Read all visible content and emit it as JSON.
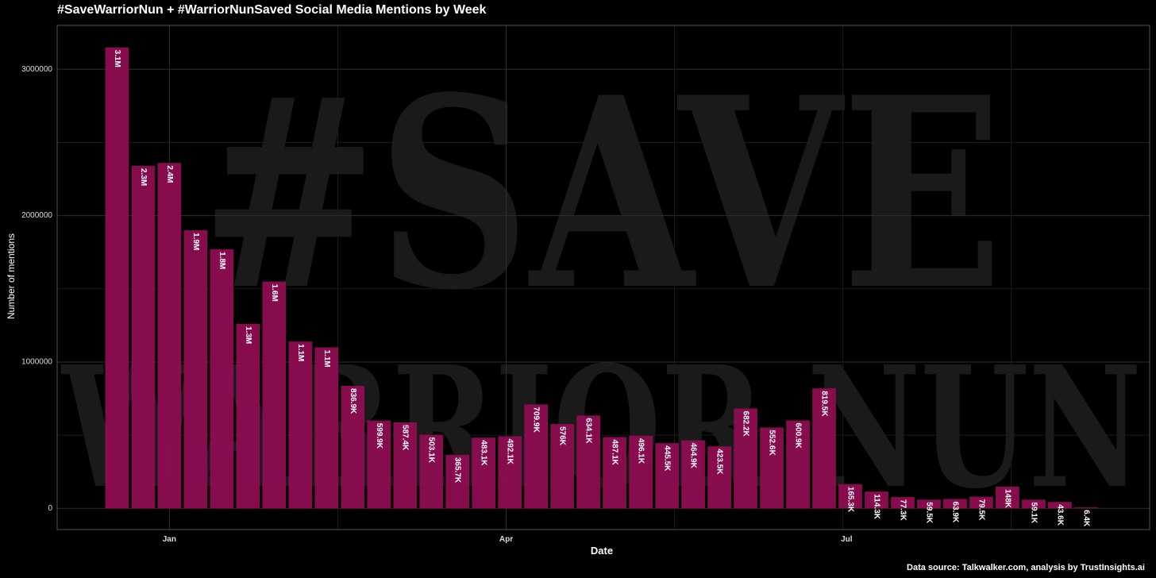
{
  "chart_data": {
    "type": "bar",
    "title": "#SaveWarriorNun + #WarriorNunSaved Social Media Mentions by Week",
    "xlabel": "Date",
    "ylabel": "Number of mentions",
    "caption": "Data source: Talkwalker.com, analysis by TrustInsights.ai",
    "watermark_lines": [
      "#SAVE",
      "WARRIOR NUN"
    ],
    "ylim": [
      -145000,
      3300000
    ],
    "y_ticks": [
      0,
      1000000,
      2000000,
      3000000
    ],
    "y_tick_labels": [
      "0",
      "1000000",
      "2000000",
      "3000000"
    ],
    "x_ticks": [
      {
        "label": "Jan",
        "date": "2023-01-01"
      },
      {
        "label": "Apr",
        "date": "2023-04-01"
      },
      {
        "label": "Jul",
        "date": "2023-07-01"
      }
    ],
    "grid": true,
    "bar_color": "#8e0d52",
    "background_color": "#000000",
    "categories": [
      "2022-12-18",
      "2022-12-25",
      "2023-01-01",
      "2023-01-08",
      "2023-01-15",
      "2023-01-22",
      "2023-01-29",
      "2023-02-05",
      "2023-02-12",
      "2023-02-19",
      "2023-02-26",
      "2023-03-05",
      "2023-03-12",
      "2023-03-19",
      "2023-03-26",
      "2023-04-02",
      "2023-04-09",
      "2023-04-16",
      "2023-04-23",
      "2023-04-30",
      "2023-05-07",
      "2023-05-14",
      "2023-05-21",
      "2023-05-28",
      "2023-06-04",
      "2023-06-11",
      "2023-06-18",
      "2023-06-25",
      "2023-07-02",
      "2023-07-09",
      "2023-07-16",
      "2023-07-23",
      "2023-07-30",
      "2023-08-06",
      "2023-08-13",
      "2023-08-20",
      "2023-08-27",
      "2023-09-03"
    ],
    "values": [
      3150000,
      2340000,
      2360000,
      1900000,
      1770000,
      1260000,
      1550000,
      1140000,
      1100000,
      836900,
      599900,
      587400,
      503100,
      365700,
      483100,
      492100,
      709900,
      576000,
      634100,
      487100,
      496100,
      445500,
      464900,
      423500,
      682200,
      552600,
      600900,
      819500,
      165300,
      114300,
      77300,
      59500,
      63900,
      79500,
      148000,
      59100,
      43600,
      6400
    ],
    "data_labels": [
      "3.1M",
      "2.3M",
      "2.4M",
      "1.9M",
      "1.8M",
      "1.3M",
      "1.6M",
      "1.1M",
      "1.1M",
      "836.9K",
      "599.9K",
      "587.4K",
      "503.1K",
      "365.7K",
      "483.1K",
      "492.1K",
      "709.9K",
      "576K",
      "634.1K",
      "487.1K",
      "496.1K",
      "445.5K",
      "464.9K",
      "423.5K",
      "682.2K",
      "552.6K",
      "600.9K",
      "819.5K",
      "165.3K",
      "114.3K",
      "77.3K",
      "59.5K",
      "63.9K",
      "79.5K",
      "148K",
      "59.1K",
      "43.6K",
      "6.4K"
    ]
  }
}
